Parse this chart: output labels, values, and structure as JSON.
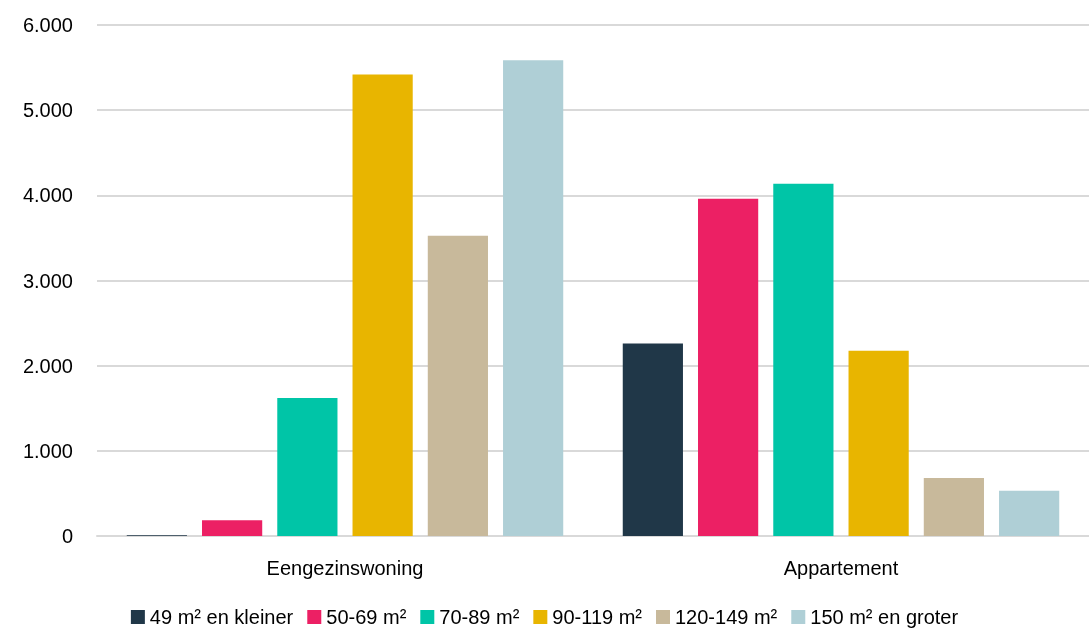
{
  "chart_data": {
    "type": "bar",
    "categories": [
      "Eengezinswoning",
      "Appartement"
    ],
    "series": [
      {
        "name": "49 m² en kleiner",
        "color": "#203748",
        "values": [
          10,
          2260
        ]
      },
      {
        "name": "50-69 m²",
        "color": "#ec2064",
        "values": [
          185,
          3960
        ]
      },
      {
        "name": "70-89 m²",
        "color": "#00c5a7",
        "values": [
          1620,
          4135
        ]
      },
      {
        "name": "90-119 m²",
        "color": "#e8b500",
        "values": [
          5420,
          2175
        ]
      },
      {
        "name": "120-149 m²",
        "color": "#c8b99b",
        "values": [
          3525,
          680
        ]
      },
      {
        "name": "150 m² en groter",
        "color": "#afcfd6",
        "values": [
          5585,
          530
        ]
      }
    ],
    "ylim": [
      0,
      6000
    ],
    "yticks": [
      {
        "value": 0,
        "label": "0"
      },
      {
        "value": 1000,
        "label": "1.000"
      },
      {
        "value": 2000,
        "label": "2.000"
      },
      {
        "value": 3000,
        "label": "3.000"
      },
      {
        "value": 4000,
        "label": "4.000"
      },
      {
        "value": 5000,
        "label": "5.000"
      },
      {
        "value": 6000,
        "label": "6.000"
      }
    ],
    "grid": "y",
    "legend": "bottom"
  }
}
